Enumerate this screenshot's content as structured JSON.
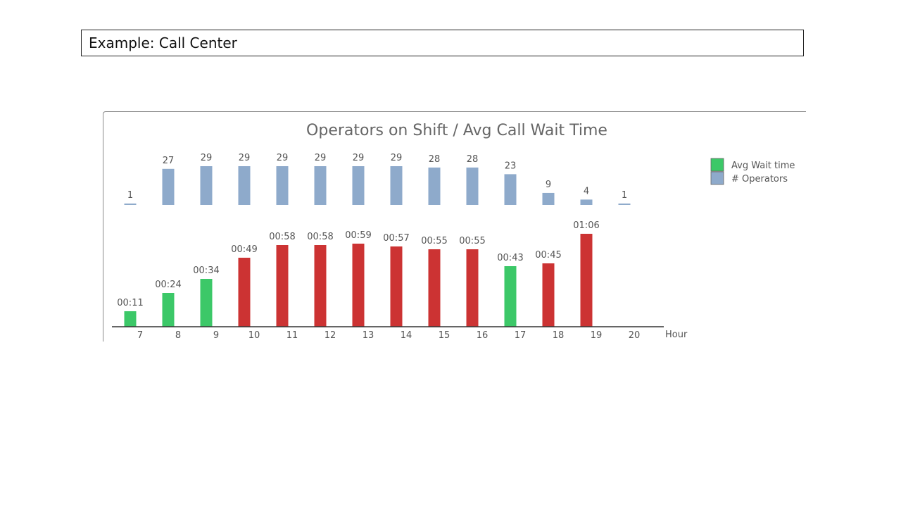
{
  "slide": {
    "title": "Example:  Call Center"
  },
  "colors": {
    "operators": "#8eaacb",
    "wait_ok": "#3cc868",
    "wait_high": "#cc3333",
    "text": "#555555",
    "axis": "#333333"
  },
  "chart_data": {
    "type": "bar",
    "title": "Operators on Shift / Avg Call Wait Time",
    "xlabel": "Hour",
    "categories": [
      "7",
      "8",
      "9",
      "10",
      "11",
      "12",
      "13",
      "14",
      "15",
      "16",
      "17",
      "18",
      "19",
      "20"
    ],
    "legend": {
      "placement": "right",
      "entries": [
        "Avg Wait time",
        "# Operators"
      ]
    },
    "grid": false,
    "series": [
      {
        "name": "# Operators",
        "values": [
          1,
          27,
          29,
          29,
          29,
          29,
          29,
          29,
          28,
          28,
          23,
          9,
          4,
          1
        ],
        "labels": [
          "1",
          "27",
          "29",
          "29",
          "29",
          "29",
          "29",
          "29",
          "28",
          "28",
          "23",
          "9",
          "4",
          "1"
        ],
        "ylim": [
          0,
          30
        ]
      },
      {
        "name": "Avg Wait time",
        "unit": "seconds",
        "values": [
          11,
          24,
          34,
          49,
          58,
          58,
          59,
          57,
          55,
          55,
          43,
          45,
          66,
          null
        ],
        "labels": [
          "00:11",
          "00:24",
          "00:34",
          "00:49",
          "00:58",
          "00:58",
          "00:59",
          "00:57",
          "00:55",
          "00:55",
          "00:43",
          "00:45",
          "01:06",
          ""
        ],
        "status": [
          "ok",
          "ok",
          "ok",
          "high",
          "high",
          "high",
          "high",
          "high",
          "high",
          "high",
          "ok",
          "high",
          "high",
          ""
        ],
        "ylim": [
          0,
          70
        ]
      }
    ]
  }
}
